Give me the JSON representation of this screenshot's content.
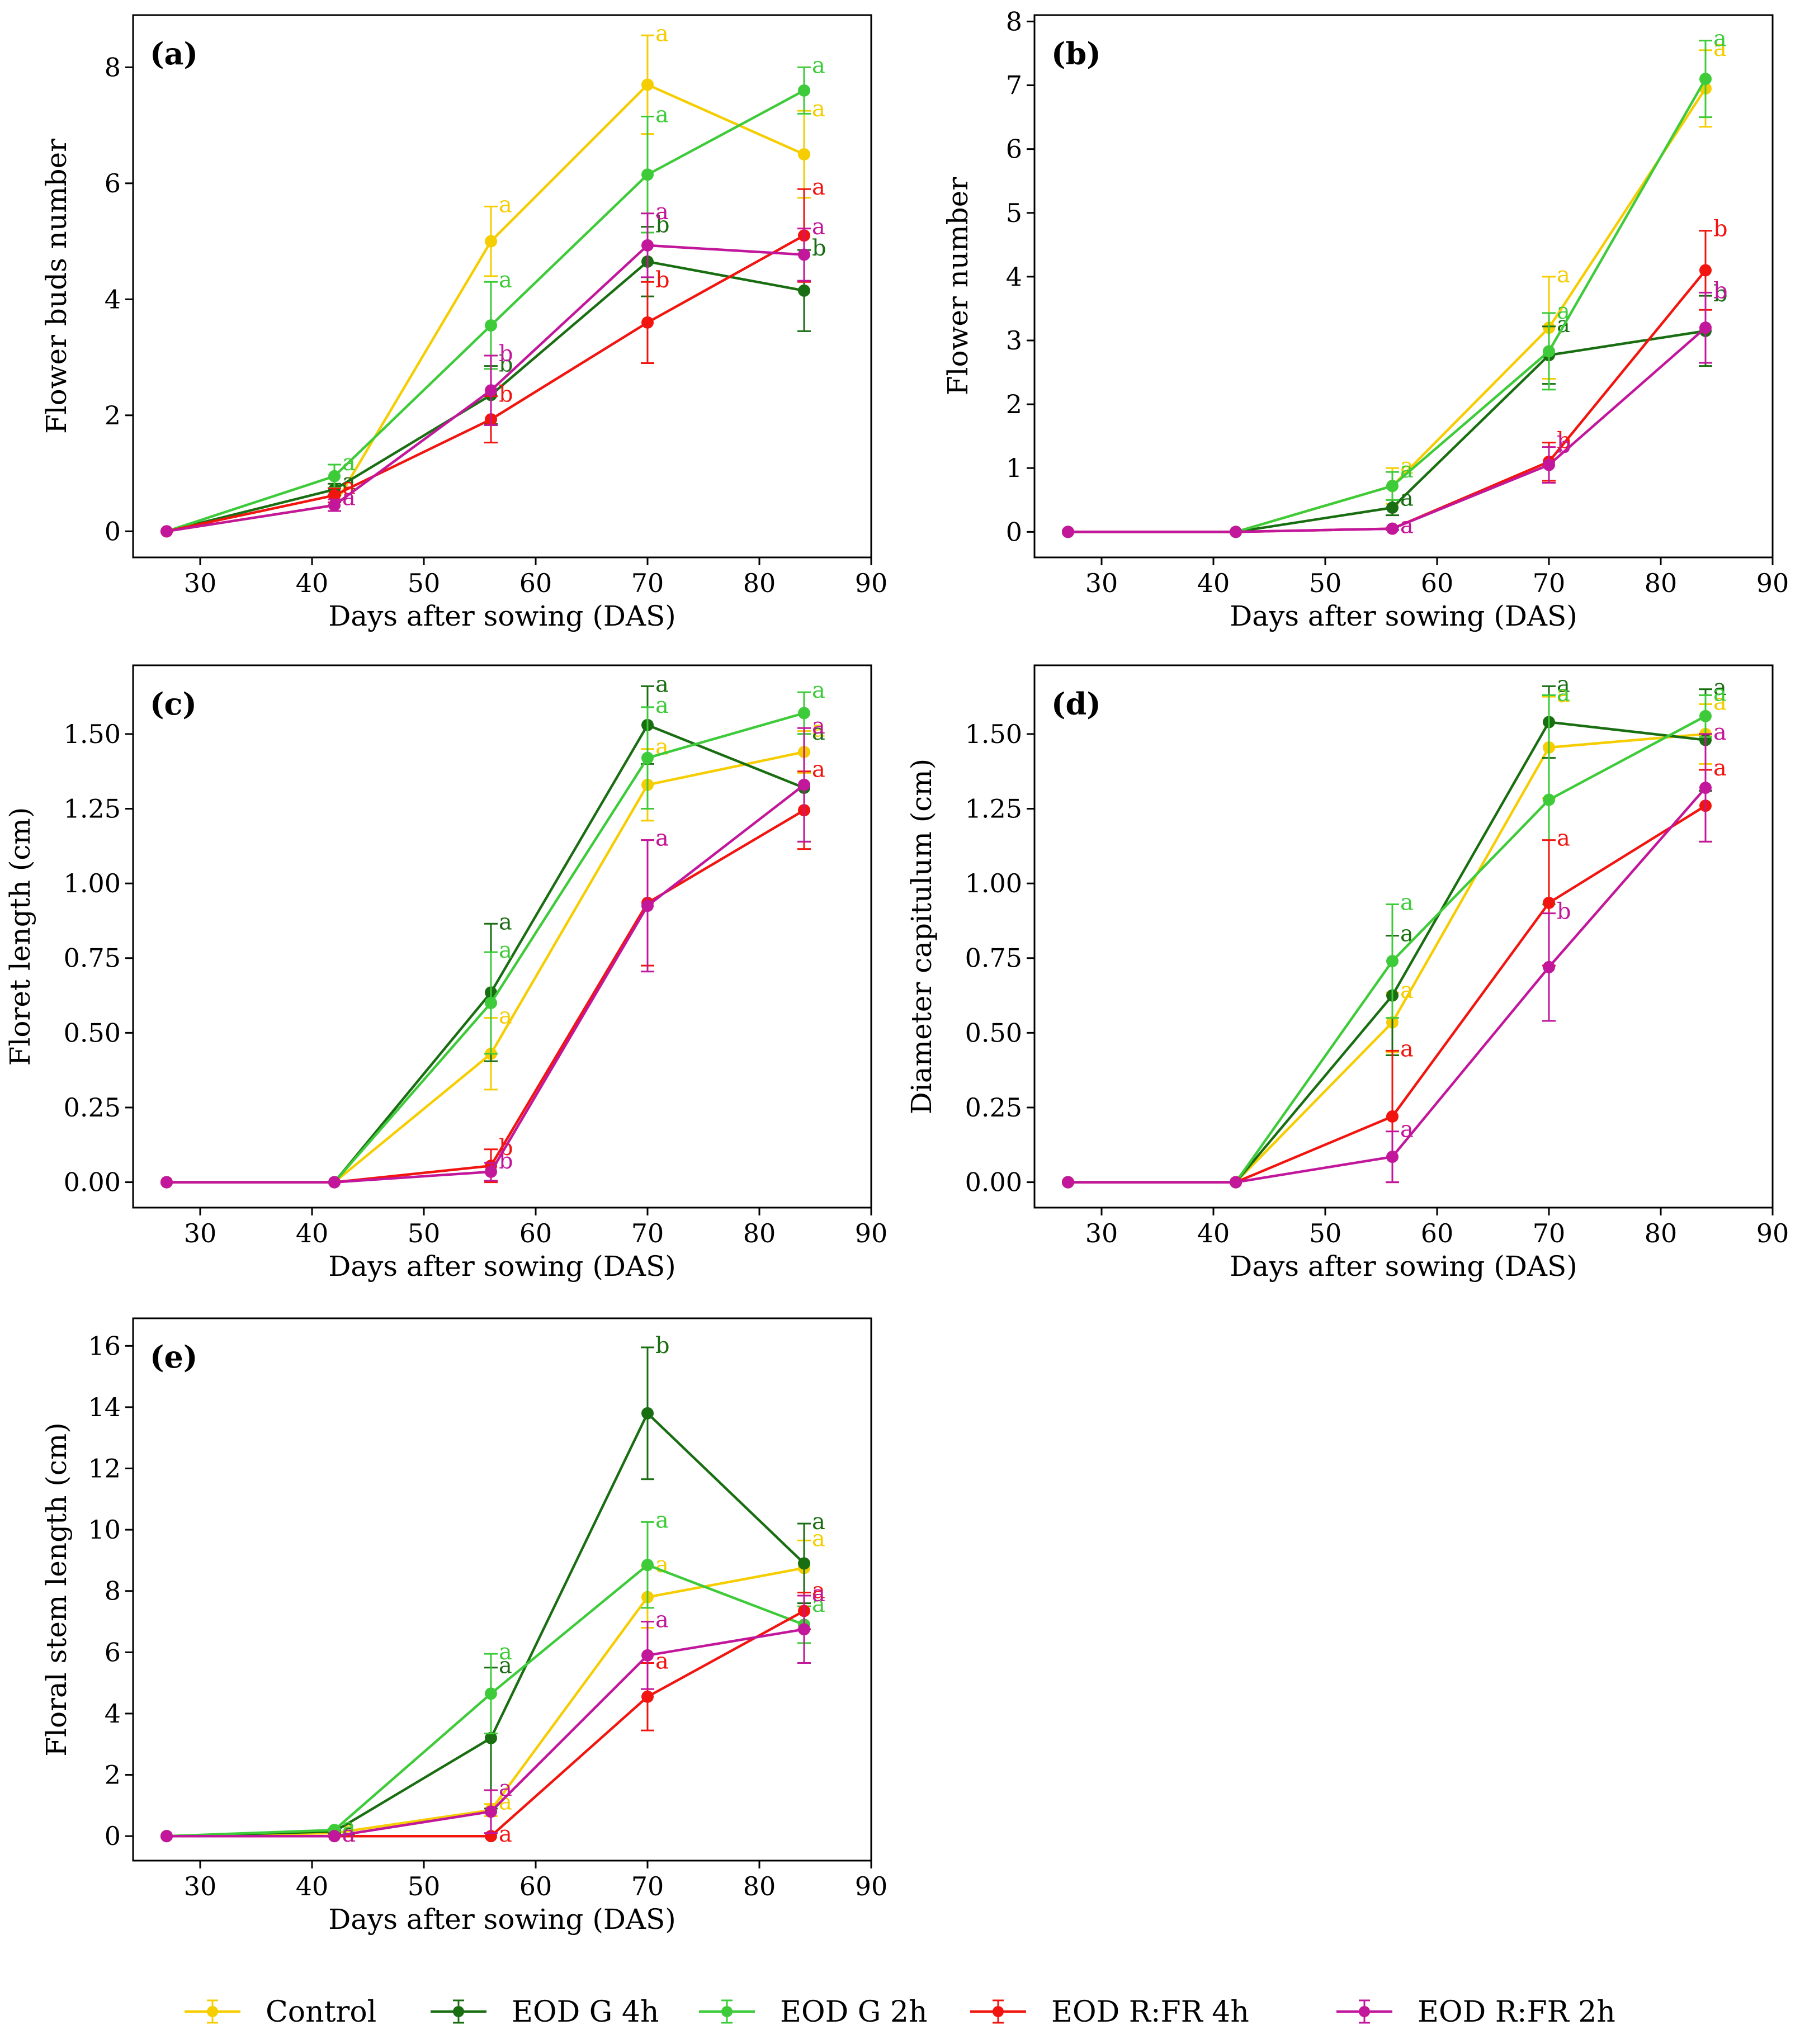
{
  "legend": [
    {
      "key": "control",
      "label": "Control",
      "color": "#f5cd00"
    },
    {
      "key": "g4",
      "label": "EOD G 4h",
      "color": "#1a6e12"
    },
    {
      "key": "g2",
      "label": "EOD G 2h",
      "color": "#3ecb3a"
    },
    {
      "key": "rfr4",
      "label": "EOD R:FR 4h",
      "color": "#f2140f"
    },
    {
      "key": "rfr2",
      "label": "EOD R:FR 2h",
      "color": "#c2169b"
    }
  ],
  "chart_data": [
    {
      "id": "a",
      "type": "line",
      "panel_label": "(a)",
      "xlabel": "Days after sowing (DAS)",
      "ylabel": "Flower buds number",
      "xlim": [
        24,
        90
      ],
      "ylim": [
        -0.45,
        8.9
      ],
      "xticks": [
        30,
        40,
        50,
        60,
        70,
        80,
        90
      ],
      "yticks": [
        0,
        2,
        4,
        6,
        8
      ],
      "x": [
        27,
        42,
        56,
        70,
        84
      ],
      "series": [
        {
          "key": "control",
          "values": [
            0,
            0.45,
            5.0,
            7.7,
            6.5
          ],
          "err": [
            0,
            0.1,
            0.6,
            0.85,
            0.75
          ],
          "letters": [
            "",
            "a",
            "a",
            "a",
            "a"
          ]
        },
        {
          "key": "g4",
          "values": [
            0,
            0.72,
            2.35,
            4.65,
            4.15
          ],
          "err": [
            0,
            0.1,
            0.5,
            0.6,
            0.7
          ],
          "letters": [
            "",
            "a",
            "b",
            "b",
            "b"
          ]
        },
        {
          "key": "g2",
          "values": [
            0,
            0.95,
            3.55,
            6.15,
            7.6
          ],
          "err": [
            0,
            0.2,
            0.75,
            1.0,
            0.4
          ],
          "letters": [
            "",
            "a",
            "a",
            "a",
            "a"
          ]
        },
        {
          "key": "rfr4",
          "values": [
            0,
            0.62,
            1.93,
            3.6,
            5.1
          ],
          "err": [
            0,
            0.12,
            0.4,
            0.7,
            0.8
          ],
          "letters": [
            "",
            "a",
            "b",
            "b",
            "a"
          ]
        },
        {
          "key": "rfr2",
          "values": [
            0,
            0.45,
            2.43,
            4.93,
            4.77
          ],
          "err": [
            0,
            0.1,
            0.6,
            0.55,
            0.45
          ],
          "letters": [
            "",
            "a",
            "b",
            "a",
            "a"
          ]
        }
      ]
    },
    {
      "id": "b",
      "type": "line",
      "panel_label": "(b)",
      "xlabel": "Days after sowing (DAS)",
      "ylabel": "Flower number",
      "xlim": [
        24,
        90
      ],
      "ylim": [
        -0.4,
        8.1
      ],
      "xticks": [
        30,
        40,
        50,
        60,
        70,
        80,
        90
      ],
      "yticks": [
        0,
        1,
        2,
        3,
        4,
        5,
        6,
        7,
        8
      ],
      "x": [
        27,
        42,
        56,
        70,
        84
      ],
      "series": [
        {
          "key": "control",
          "values": [
            0,
            0,
            0.72,
            3.2,
            6.95
          ],
          "err": [
            0,
            0,
            0.28,
            0.8,
            0.6
          ],
          "letters": [
            "",
            "",
            "a",
            "a",
            "a"
          ]
        },
        {
          "key": "g4",
          "values": [
            0,
            0,
            0.38,
            2.77,
            3.15
          ],
          "err": [
            0,
            0,
            0.12,
            0.45,
            0.55
          ],
          "letters": [
            "",
            "",
            "a",
            "a",
            "b"
          ]
        },
        {
          "key": "g2",
          "values": [
            0,
            0,
            0.72,
            2.83,
            7.1
          ],
          "err": [
            0,
            0,
            0.22,
            0.6,
            0.6
          ],
          "letters": [
            "",
            "",
            "a",
            "a",
            "a"
          ]
        },
        {
          "key": "rfr4",
          "values": [
            0,
            0,
            0.05,
            1.1,
            4.1
          ],
          "err": [
            0,
            0,
            0.02,
            0.3,
            0.62
          ],
          "letters": [
            "",
            "",
            "a",
            "b",
            "b"
          ]
        },
        {
          "key": "rfr2",
          "values": [
            0,
            0,
            0.05,
            1.05,
            3.2
          ],
          "err": [
            0,
            0,
            0.02,
            0.28,
            0.55
          ],
          "letters": [
            "",
            "",
            "a",
            "b",
            "b"
          ]
        }
      ]
    },
    {
      "id": "c",
      "type": "line",
      "panel_label": "(c)",
      "xlabel": "Days after sowing (DAS)",
      "ylabel": "Floret length (cm)",
      "xlim": [
        24,
        90
      ],
      "ylim": [
        -0.085,
        1.73
      ],
      "xticks": [
        30,
        40,
        50,
        60,
        70,
        80,
        90
      ],
      "yticks": [
        0.0,
        0.25,
        0.5,
        0.75,
        1.0,
        1.25,
        1.5
      ],
      "ytick_labels": [
        "0.00",
        "0.25",
        "0.50",
        "0.75",
        "1.00",
        "1.25",
        "1.50"
      ],
      "x": [
        27,
        42,
        56,
        70,
        84
      ],
      "series": [
        {
          "key": "control",
          "values": [
            0,
            0,
            0.43,
            1.33,
            1.44
          ],
          "err": [
            0,
            0,
            0.12,
            0.12,
            0.07
          ],
          "letters": [
            "",
            "",
            "a",
            "a",
            "a"
          ]
        },
        {
          "key": "g4",
          "values": [
            0,
            0,
            0.635,
            1.53,
            1.32
          ],
          "err": [
            0,
            0,
            0.23,
            0.13,
            0.18
          ],
          "letters": [
            "",
            "",
            "a",
            "a",
            "a"
          ]
        },
        {
          "key": "g2",
          "values": [
            0,
            0,
            0.6,
            1.42,
            1.57
          ],
          "err": [
            0,
            0,
            0.17,
            0.17,
            0.07
          ],
          "letters": [
            "",
            "",
            "a",
            "a",
            "a"
          ]
        },
        {
          "key": "rfr4",
          "values": [
            0,
            0,
            0.055,
            0.935,
            1.245
          ],
          "err": [
            0,
            0,
            0.055,
            0.21,
            0.13
          ],
          "letters": [
            "",
            "",
            "b",
            "a",
            "a"
          ]
        },
        {
          "key": "rfr2",
          "values": [
            0,
            0,
            0.035,
            0.925,
            1.33
          ],
          "err": [
            0,
            0,
            0.03,
            0.22,
            0.19
          ],
          "letters": [
            "",
            "",
            "b",
            "a",
            "a"
          ]
        }
      ]
    },
    {
      "id": "d",
      "type": "line",
      "panel_label": "(d)",
      "xlabel": "Days after sowing (DAS)",
      "ylabel": "Diameter capitulum (cm)",
      "xlim": [
        24,
        90
      ],
      "ylim": [
        -0.085,
        1.73
      ],
      "xticks": [
        30,
        40,
        50,
        60,
        70,
        80,
        90
      ],
      "yticks": [
        0.0,
        0.25,
        0.5,
        0.75,
        1.0,
        1.25,
        1.5
      ],
      "ytick_labels": [
        "0.00",
        "0.25",
        "0.50",
        "0.75",
        "1.00",
        "1.25",
        "1.50"
      ],
      "x": [
        27,
        42,
        56,
        70,
        84
      ],
      "series": [
        {
          "key": "control",
          "values": [
            0,
            0,
            0.535,
            1.455,
            1.5
          ],
          "err": [
            0,
            0,
            0.1,
            0.17,
            0.1
          ],
          "letters": [
            "",
            "",
            "a",
            "a",
            "a"
          ]
        },
        {
          "key": "g4",
          "values": [
            0,
            0,
            0.625,
            1.54,
            1.48
          ],
          "err": [
            0,
            0,
            0.2,
            0.12,
            0.17
          ],
          "letters": [
            "",
            "",
            "a",
            "a",
            "a"
          ]
        },
        {
          "key": "g2",
          "values": [
            0,
            0,
            0.74,
            1.28,
            1.56
          ],
          "err": [
            0,
            0,
            0.19,
            0.35,
            0.07
          ],
          "letters": [
            "",
            "",
            "a",
            "a",
            "a"
          ]
        },
        {
          "key": "rfr4",
          "values": [
            0,
            0,
            0.22,
            0.935,
            1.26
          ],
          "err": [
            0,
            0,
            0.22,
            0.21,
            0.12
          ],
          "letters": [
            "",
            "",
            "a",
            "a",
            "a"
          ]
        },
        {
          "key": "rfr2",
          "values": [
            0,
            0,
            0.085,
            0.72,
            1.32
          ],
          "err": [
            0,
            0,
            0.085,
            0.18,
            0.18
          ],
          "letters": [
            "",
            "",
            "a",
            "b",
            "a"
          ]
        }
      ]
    },
    {
      "id": "e",
      "type": "line",
      "panel_label": "(e)",
      "xlabel": "Days after sowing (DAS)",
      "ylabel": "Floral stem length (cm)",
      "xlim": [
        24,
        90
      ],
      "ylim": [
        -0.8,
        16.9
      ],
      "xticks": [
        30,
        40,
        50,
        60,
        70,
        80,
        90
      ],
      "yticks": [
        0,
        2,
        4,
        6,
        8,
        10,
        12,
        14,
        16
      ],
      "x": [
        27,
        42,
        56,
        70,
        84
      ],
      "series": [
        {
          "key": "control",
          "values": [
            0,
            0.1,
            0.85,
            7.8,
            8.75
          ],
          "err": [
            0,
            0.05,
            0.2,
            1.0,
            0.9
          ],
          "letters": [
            "",
            "a",
            "a",
            "a",
            "a"
          ]
        },
        {
          "key": "g4",
          "values": [
            0,
            0.15,
            3.2,
            13.8,
            8.9
          ],
          "err": [
            0,
            0.05,
            2.3,
            2.15,
            1.3
          ],
          "letters": [
            "",
            "a",
            "a",
            "b",
            "a"
          ]
        },
        {
          "key": "g2",
          "values": [
            0,
            0.2,
            4.65,
            8.85,
            6.9
          ],
          "err": [
            0,
            0.05,
            1.3,
            1.4,
            0.6
          ],
          "letters": [
            "",
            "a",
            "a",
            "a",
            "a"
          ]
        },
        {
          "key": "rfr4",
          "values": [
            0,
            0,
            0,
            4.55,
            7.35
          ],
          "err": [
            0,
            0,
            0,
            1.1,
            0.6
          ],
          "letters": [
            "",
            "a",
            "a",
            "a",
            "a"
          ]
        },
        {
          "key": "rfr2",
          "values": [
            0,
            0,
            0.8,
            5.9,
            6.75
          ],
          "err": [
            0,
            0,
            0.7,
            1.1,
            1.1
          ],
          "letters": [
            "",
            "a",
            "a",
            "a",
            "a"
          ]
        }
      ]
    }
  ]
}
